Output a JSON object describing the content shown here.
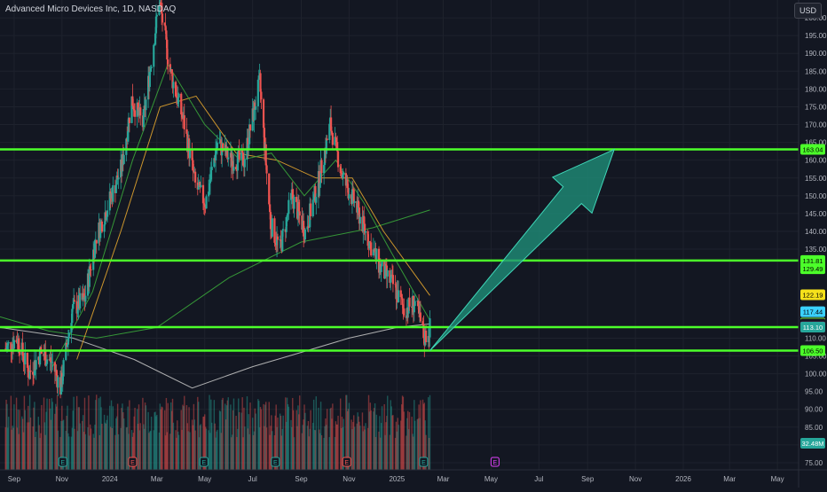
{
  "header": {
    "symbol_title": "Advanced Micro Devices Inc, 1D, NASDAQ",
    "currency_label": "USD"
  },
  "colors": {
    "background": "#131722",
    "grid": "#1e222d",
    "up": "#26a69a",
    "down": "#ef5350",
    "level_line": "#4cff2a",
    "arrow": "#1f8f7a",
    "axis_text": "#b2b5be",
    "sma_short": "#3aa53a",
    "sma_mid": "#e0a32e",
    "sma_long": "#c0c0c0"
  },
  "chart_data": {
    "type": "candlestick",
    "price_axis": {
      "ticks": [
        "200.00",
        "195.00",
        "190.00",
        "185.00",
        "180.00",
        "175.00",
        "170.00",
        "165.00",
        "160.00",
        "155.00",
        "150.00",
        "145.00",
        "140.00",
        "135.00",
        "110.00",
        "105.00",
        "100.00",
        "95.00",
        "90.00",
        "85.00",
        "80.00",
        "75.00"
      ],
      "ylim": [
        73,
        205
      ]
    },
    "time_axis": {
      "ticks": [
        "Sep",
        "Nov",
        "2024",
        "Mar",
        "May",
        "Jul",
        "Sep",
        "Nov",
        "2025",
        "Mar",
        "May",
        "Jul",
        "Sep",
        "Nov",
        "2026",
        "Mar",
        "May"
      ],
      "start": "2023-08-14",
      "end": "2026-05-28"
    },
    "price_labels": [
      {
        "text": "163.04",
        "value": 163.04,
        "bg": "#4cff2a",
        "fg": "#000000"
      },
      {
        "text": "131.81",
        "value": 131.81,
        "bg": "#4cff2a",
        "fg": "#000000"
      },
      {
        "text": "129.49",
        "value": 129.49,
        "bg": "#4cff2a",
        "fg": "#000000"
      },
      {
        "text": "122.19",
        "value": 122.19,
        "bg": "#f5e11b",
        "fg": "#000000"
      },
      {
        "text": "117.44",
        "value": 117.44,
        "bg": "#3ad1ff",
        "fg": "#000000"
      },
      {
        "text": "114.22",
        "value": 114.22,
        "bg": "#8dff3c",
        "fg": "#000000"
      },
      {
        "text": "113.99",
        "value": 113.99,
        "bg": "#131722",
        "fg": "#d1d4dc"
      },
      {
        "text": "113.14",
        "value": 113.14,
        "bg": "#ff2cbd",
        "fg": "#ffffff"
      },
      {
        "text": "113.10",
        "value": 113.1,
        "bg": "#26a69a",
        "fg": "#ffffff"
      },
      {
        "text": "106.50",
        "value": 106.5,
        "bg": "#4cff2a",
        "fg": "#000000"
      },
      {
        "text": "32.48M",
        "value": 32.48,
        "bg": "#26a69a",
        "fg": "#ffffff"
      }
    ],
    "levels": [
      163.04,
      131.81,
      113.1,
      106.5
    ],
    "arrow": {
      "from": {
        "date": "2025-02-12",
        "price": 106.5
      },
      "to": {
        "date": "2025-10-05",
        "price": 163.04
      }
    },
    "events": [
      {
        "date": "2023-11-02",
        "label": "E",
        "color": "#26a69a"
      },
      {
        "date": "2024-01-30",
        "label": "E",
        "color": "#ef5350"
      },
      {
        "date": "2024-04-30",
        "label": "E",
        "color": "#26a69a"
      },
      {
        "date": "2024-07-30",
        "label": "E",
        "color": "#26a69a"
      },
      {
        "date": "2024-10-29",
        "label": "E",
        "color": "#ef5350"
      },
      {
        "date": "2025-02-04",
        "label": "E",
        "color": "#26a69a"
      },
      {
        "date": "2025-05-06",
        "label": "E",
        "color": "#e040fb"
      }
    ],
    "series": [
      {
        "date": "2023-08-21",
        "price": 107
      },
      {
        "date": "2023-09-05",
        "price": 110
      },
      {
        "date": "2023-09-20",
        "price": 100
      },
      {
        "date": "2023-10-05",
        "price": 106
      },
      {
        "date": "2023-10-20",
        "price": 103
      },
      {
        "date": "2023-10-30",
        "price": 96
      },
      {
        "date": "2023-11-14",
        "price": 118
      },
      {
        "date": "2023-11-30",
        "price": 121
      },
      {
        "date": "2023-12-14",
        "price": 138
      },
      {
        "date": "2023-12-29",
        "price": 147
      },
      {
        "date": "2024-01-16",
        "price": 158
      },
      {
        "date": "2024-01-29",
        "price": 177
      },
      {
        "date": "2024-02-12",
        "price": 170
      },
      {
        "date": "2024-03-04",
        "price": 205
      },
      {
        "date": "2024-03-18",
        "price": 185
      },
      {
        "date": "2024-04-05",
        "price": 170
      },
      {
        "date": "2024-04-19",
        "price": 153
      },
      {
        "date": "2024-05-02",
        "price": 148
      },
      {
        "date": "2024-05-17",
        "price": 165
      },
      {
        "date": "2024-06-03",
        "price": 160
      },
      {
        "date": "2024-06-20",
        "price": 160
      },
      {
        "date": "2024-07-10",
        "price": 182
      },
      {
        "date": "2024-07-24",
        "price": 142
      },
      {
        "date": "2024-08-05",
        "price": 135
      },
      {
        "date": "2024-08-20",
        "price": 150
      },
      {
        "date": "2024-09-06",
        "price": 140
      },
      {
        "date": "2024-09-23",
        "price": 154
      },
      {
        "date": "2024-10-08",
        "price": 170
      },
      {
        "date": "2024-10-24",
        "price": 155
      },
      {
        "date": "2024-11-08",
        "price": 148
      },
      {
        "date": "2024-11-25",
        "price": 138
      },
      {
        "date": "2024-12-10",
        "price": 130
      },
      {
        "date": "2024-12-27",
        "price": 125
      },
      {
        "date": "2025-01-10",
        "price": 118
      },
      {
        "date": "2025-01-24",
        "price": 120
      },
      {
        "date": "2025-02-05",
        "price": 110
      },
      {
        "date": "2025-02-12",
        "price": 113
      }
    ],
    "sma_short": [
      {
        "date": "2023-10-20",
        "price": 102
      },
      {
        "date": "2023-12-10",
        "price": 123
      },
      {
        "date": "2024-01-30",
        "price": 160
      },
      {
        "date": "2024-03-15",
        "price": 187
      },
      {
        "date": "2024-05-01",
        "price": 170
      },
      {
        "date": "2024-06-15",
        "price": 160
      },
      {
        "date": "2024-07-25",
        "price": 162
      },
      {
        "date": "2024-09-05",
        "price": 150
      },
      {
        "date": "2024-10-15",
        "price": 160
      },
      {
        "date": "2024-11-20",
        "price": 148
      },
      {
        "date": "2024-12-25",
        "price": 134
      },
      {
        "date": "2025-02-12",
        "price": 115
      }
    ],
    "sma_mid": [
      {
        "date": "2023-11-20",
        "price": 104
      },
      {
        "date": "2024-01-15",
        "price": 140
      },
      {
        "date": "2024-03-05",
        "price": 175
      },
      {
        "date": "2024-04-20",
        "price": 178
      },
      {
        "date": "2024-06-10",
        "price": 162
      },
      {
        "date": "2024-08-01",
        "price": 160
      },
      {
        "date": "2024-09-20",
        "price": 155
      },
      {
        "date": "2024-11-05",
        "price": 155
      },
      {
        "date": "2024-12-15",
        "price": 140
      },
      {
        "date": "2025-02-12",
        "price": 122
      }
    ],
    "sma_long": [
      {
        "date": "2023-08-14",
        "price": 116
      },
      {
        "date": "2023-10-15",
        "price": 112
      },
      {
        "date": "2023-12-15",
        "price": 110
      },
      {
        "date": "2024-03-01",
        "price": 113
      },
      {
        "date": "2024-06-01",
        "price": 127
      },
      {
        "date": "2024-09-01",
        "price": 137
      },
      {
        "date": "2024-12-01",
        "price": 141
      },
      {
        "date": "2025-02-12",
        "price": 146
      }
    ],
    "sma_200": [
      {
        "date": "2023-08-14",
        "price": 113
      },
      {
        "date": "2023-11-15",
        "price": 110
      },
      {
        "date": "2024-02-01",
        "price": 104
      },
      {
        "date": "2024-04-15",
        "price": 96
      },
      {
        "date": "2024-07-01",
        "price": 102
      },
      {
        "date": "2024-09-01",
        "price": 106
      },
      {
        "date": "2024-11-01",
        "price": 110
      },
      {
        "date": "2025-01-01",
        "price": 113
      },
      {
        "date": "2025-02-12",
        "price": 114
      }
    ]
  }
}
